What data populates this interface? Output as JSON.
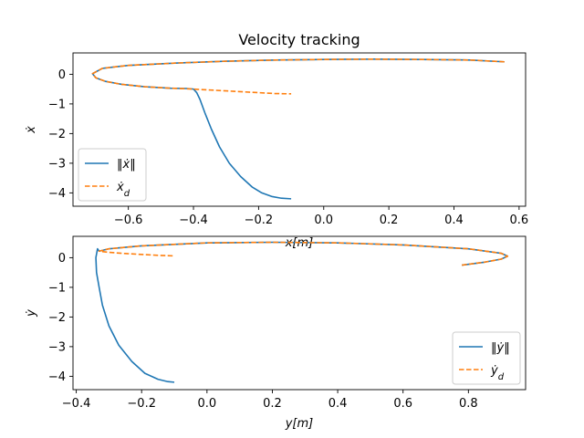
{
  "chart_data": [
    {
      "type": "line",
      "title": "Velocity tracking",
      "xlabel": "x[m]",
      "ylabel": "ẋ",
      "xlim": [
        -0.77,
        0.62
      ],
      "ylim": [
        -4.45,
        0.72
      ],
      "xticks": [
        -0.6,
        -0.4,
        -0.2,
        0.0,
        0.2,
        0.4,
        0.6
      ],
      "xtick_labels": [
        "−0.6",
        "−0.4",
        "−0.2",
        "0.0",
        "0.2",
        "0.4",
        "0.6"
      ],
      "yticks": [
        0,
        -1,
        -2,
        -3,
        -4
      ],
      "ytick_labels": [
        "0",
        "−1",
        "−2",
        "−3",
        "−4"
      ],
      "legend_position": "lower-left",
      "series": [
        {
          "name": "‖ẋ‖",
          "color": "#1f77b4",
          "style": "solid",
          "x": [
            0.555,
            0.45,
            0.3,
            0.15,
            0.0,
            -0.15,
            -0.3,
            -0.45,
            -0.6,
            -0.68,
            -0.71,
            -0.7,
            -0.67,
            -0.62,
            -0.55,
            -0.47,
            -0.42,
            -0.4,
            -0.39,
            -0.38,
            -0.365,
            -0.345,
            -0.32,
            -0.29,
            -0.255,
            -0.22,
            -0.19,
            -0.16,
            -0.13,
            -0.1
          ],
          "y": [
            0.42,
            0.48,
            0.5,
            0.51,
            0.5,
            0.48,
            0.44,
            0.38,
            0.3,
            0.2,
            0.02,
            -0.12,
            -0.24,
            -0.34,
            -0.42,
            -0.47,
            -0.48,
            -0.5,
            -0.62,
            -0.85,
            -1.3,
            -1.85,
            -2.45,
            -3.0,
            -3.45,
            -3.8,
            -4.0,
            -4.12,
            -4.18,
            -4.2
          ]
        },
        {
          "name": "ẋ_d",
          "color": "#ff7f0e",
          "style": "dashed",
          "x": [
            0.555,
            0.45,
            0.3,
            0.15,
            0.0,
            -0.15,
            -0.3,
            -0.45,
            -0.6,
            -0.68,
            -0.71,
            -0.7,
            -0.67,
            -0.62,
            -0.55,
            -0.47,
            -0.42,
            -0.35,
            -0.25,
            -0.15,
            -0.1
          ],
          "y": [
            0.42,
            0.48,
            0.5,
            0.51,
            0.5,
            0.48,
            0.44,
            0.38,
            0.3,
            0.2,
            0.02,
            -0.12,
            -0.24,
            -0.34,
            -0.42,
            -0.47,
            -0.49,
            -0.53,
            -0.59,
            -0.65,
            -0.66
          ]
        }
      ]
    },
    {
      "type": "line",
      "title": "",
      "xlabel": "y[m]",
      "ylabel": "ẏ",
      "xlim": [
        -0.41,
        0.975
      ],
      "ylim": [
        -4.45,
        0.72
      ],
      "xticks": [
        -0.4,
        -0.2,
        0.0,
        0.2,
        0.4,
        0.6,
        0.8
      ],
      "xtick_labels": [
        "−0.4",
        "−0.2",
        "0.0",
        "0.2",
        "0.4",
        "0.6",
        "0.8"
      ],
      "yticks": [
        0,
        -1,
        -2,
        -3,
        -4
      ],
      "ytick_labels": [
        "0",
        "−1",
        "−2",
        "−3",
        "−4"
      ],
      "legend_position": "lower-right",
      "series": [
        {
          "name": "‖ẏ‖",
          "color": "#1f77b4",
          "style": "solid",
          "x": [
            0.78,
            0.85,
            0.9,
            0.92,
            0.9,
            0.8,
            0.6,
            0.4,
            0.2,
            0.0,
            -0.2,
            -0.3,
            -0.33,
            -0.335,
            -0.34,
            -0.338,
            -0.33,
            -0.32,
            -0.3,
            -0.27,
            -0.23,
            -0.19,
            -0.15,
            -0.12,
            -0.1
          ],
          "y": [
            -0.25,
            -0.15,
            -0.05,
            0.05,
            0.15,
            0.3,
            0.43,
            0.5,
            0.52,
            0.5,
            0.4,
            0.3,
            0.22,
            0.3,
            0.0,
            -0.5,
            -1.0,
            -1.6,
            -2.3,
            -2.95,
            -3.5,
            -3.9,
            -4.1,
            -4.18,
            -4.2
          ]
        },
        {
          "name": "ẏ_d",
          "color": "#ff7f0e",
          "style": "dashed",
          "x": [
            0.78,
            0.85,
            0.9,
            0.92,
            0.9,
            0.8,
            0.6,
            0.4,
            0.2,
            0.0,
            -0.2,
            -0.3,
            -0.33,
            -0.3,
            -0.25,
            -0.15,
            -0.1
          ],
          "y": [
            -0.25,
            -0.15,
            -0.05,
            0.05,
            0.15,
            0.3,
            0.43,
            0.5,
            0.52,
            0.5,
            0.4,
            0.3,
            0.22,
            0.18,
            0.14,
            0.08,
            0.06
          ]
        }
      ]
    }
  ]
}
